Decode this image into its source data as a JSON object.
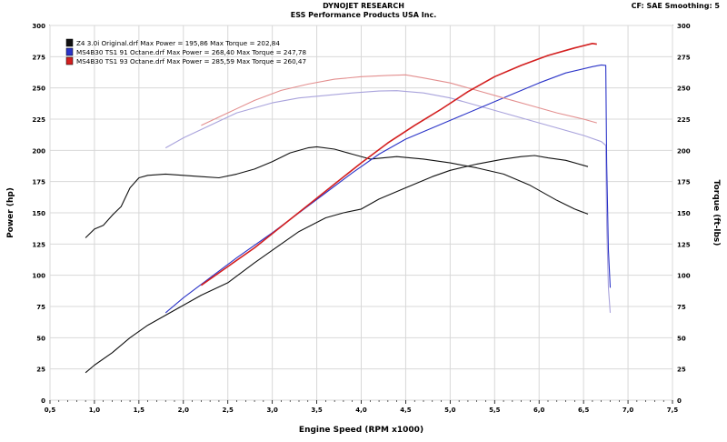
{
  "header": {
    "title": "DYNOJET RESEARCH",
    "subtitle": "ESS Performance Products USA Inc.",
    "settings": "CF: SAE  Smoothing: 5"
  },
  "chart_data": {
    "type": "line",
    "title": "DYNOJET RESEARCH",
    "subtitle": "ESS Performance Products USA Inc.",
    "xlabel": "Engine Speed (RPM x1000)",
    "ylabel_left": "Power (hp)",
    "ylabel_right": "Torque (ft-lbs)",
    "xlim": [
      0.5,
      7.5
    ],
    "ylim": [
      0,
      300
    ],
    "xticks": [
      "0,5",
      "1,0",
      "1,5",
      "2,0",
      "2,5",
      "3,0",
      "3,5",
      "4,0",
      "4,5",
      "5,0",
      "5,5",
      "6,0",
      "6,5",
      "7,0",
      "7,5"
    ],
    "yticks": [
      "0",
      "25",
      "50",
      "75",
      "100",
      "125",
      "150",
      "175",
      "200",
      "225",
      "250",
      "275",
      "300"
    ],
    "grid": true,
    "legend_position": "top-left",
    "series": [
      {
        "name": "Z4 3.0i Original.drf",
        "legend_text": "Z4 3.0i Original.drf Max Power = 195,86     Max Torque = 202,84",
        "color": "#111111",
        "power": [
          [
            0.9,
            22
          ],
          [
            1.0,
            28
          ],
          [
            1.2,
            38
          ],
          [
            1.4,
            50
          ],
          [
            1.6,
            60
          ],
          [
            1.8,
            68
          ],
          [
            2.0,
            76
          ],
          [
            2.2,
            84
          ],
          [
            2.5,
            94
          ],
          [
            2.8,
            110
          ],
          [
            3.0,
            120
          ],
          [
            3.3,
            135
          ],
          [
            3.6,
            146
          ],
          [
            3.8,
            150
          ],
          [
            4.0,
            153
          ],
          [
            4.2,
            161
          ],
          [
            4.5,
            170
          ],
          [
            4.8,
            179
          ],
          [
            5.0,
            184
          ],
          [
            5.3,
            189
          ],
          [
            5.6,
            193
          ],
          [
            5.8,
            195
          ],
          [
            5.95,
            195.86
          ],
          [
            6.1,
            194
          ],
          [
            6.3,
            192
          ],
          [
            6.5,
            188
          ],
          [
            6.55,
            187
          ]
        ],
        "torque": [
          [
            0.9,
            130
          ],
          [
            1.0,
            137
          ],
          [
            1.1,
            140
          ],
          [
            1.2,
            148
          ],
          [
            1.3,
            155
          ],
          [
            1.4,
            170
          ],
          [
            1.5,
            178
          ],
          [
            1.6,
            180
          ],
          [
            1.8,
            181
          ],
          [
            2.0,
            180
          ],
          [
            2.2,
            179
          ],
          [
            2.4,
            178
          ],
          [
            2.6,
            181
          ],
          [
            2.8,
            185
          ],
          [
            3.0,
            191
          ],
          [
            3.2,
            198
          ],
          [
            3.4,
            202
          ],
          [
            3.5,
            202.84
          ],
          [
            3.7,
            201
          ],
          [
            3.9,
            197
          ],
          [
            4.1,
            193
          ],
          [
            4.4,
            195
          ],
          [
            4.7,
            193
          ],
          [
            5.0,
            190
          ],
          [
            5.3,
            186
          ],
          [
            5.6,
            181
          ],
          [
            5.9,
            172
          ],
          [
            6.2,
            160
          ],
          [
            6.4,
            153
          ],
          [
            6.55,
            149
          ]
        ]
      },
      {
        "name": "MS4B30 TS1 91 Octane.drf",
        "legend_text": "MS4B30 TS1 91 Octane.drf Max Power = 268,40     Max Torque = 247,78",
        "color": "#2b34c8",
        "color_torque": "#a9a3dc",
        "power": [
          [
            1.8,
            70
          ],
          [
            2.0,
            82
          ],
          [
            2.3,
            98
          ],
          [
            2.6,
            114
          ],
          [
            3.0,
            134
          ],
          [
            3.3,
            150
          ],
          [
            3.6,
            166
          ],
          [
            3.9,
            182
          ],
          [
            4.2,
            197
          ],
          [
            4.5,
            209
          ],
          [
            4.8,
            218
          ],
          [
            5.1,
            227
          ],
          [
            5.4,
            236
          ],
          [
            5.7,
            245
          ],
          [
            6.0,
            254
          ],
          [
            6.3,
            262
          ],
          [
            6.6,
            267
          ],
          [
            6.7,
            268.4
          ],
          [
            6.75,
            268
          ],
          [
            6.76,
            190
          ],
          [
            6.78,
            120
          ],
          [
            6.8,
            90
          ]
        ],
        "torque": [
          [
            1.8,
            202
          ],
          [
            2.0,
            210
          ],
          [
            2.3,
            220
          ],
          [
            2.6,
            230
          ],
          [
            3.0,
            238
          ],
          [
            3.3,
            242
          ],
          [
            3.6,
            244
          ],
          [
            3.9,
            246
          ],
          [
            4.2,
            247.5
          ],
          [
            4.4,
            247.78
          ],
          [
            4.7,
            246
          ],
          [
            5.0,
            242
          ],
          [
            5.3,
            236
          ],
          [
            5.6,
            230
          ],
          [
            5.9,
            224
          ],
          [
            6.2,
            218
          ],
          [
            6.5,
            212
          ],
          [
            6.7,
            207
          ],
          [
            6.75,
            204
          ],
          [
            6.76,
            140
          ],
          [
            6.78,
            90
          ],
          [
            6.8,
            70
          ]
        ]
      },
      {
        "name": "MS4B30 TS1 93 Octane.drf",
        "legend_text": "MS4B30 TS1 93 Octane.drf Max Power = 285,59     Max Torque = 260,47",
        "color": "#d31f1f",
        "color_torque": "#e38f8f",
        "power": [
          [
            2.2,
            92
          ],
          [
            2.5,
            107
          ],
          [
            2.8,
            122
          ],
          [
            3.1,
            139
          ],
          [
            3.4,
            156
          ],
          [
            3.7,
            173
          ],
          [
            4.0,
            190
          ],
          [
            4.3,
            206
          ],
          [
            4.6,
            220
          ],
          [
            4.9,
            233
          ],
          [
            5.2,
            247
          ],
          [
            5.5,
            259
          ],
          [
            5.8,
            268
          ],
          [
            6.1,
            276
          ],
          [
            6.4,
            282
          ],
          [
            6.6,
            285.59
          ],
          [
            6.65,
            285
          ]
        ],
        "torque": [
          [
            2.2,
            220
          ],
          [
            2.5,
            230
          ],
          [
            2.8,
            240
          ],
          [
            3.1,
            248
          ],
          [
            3.4,
            253
          ],
          [
            3.7,
            257
          ],
          [
            4.0,
            259
          ],
          [
            4.3,
            260
          ],
          [
            4.5,
            260.47
          ],
          [
            4.7,
            258
          ],
          [
            5.0,
            254
          ],
          [
            5.3,
            248
          ],
          [
            5.6,
            242
          ],
          [
            5.9,
            236
          ],
          [
            6.2,
            230
          ],
          [
            6.5,
            225
          ],
          [
            6.65,
            222
          ]
        ]
      }
    ]
  }
}
